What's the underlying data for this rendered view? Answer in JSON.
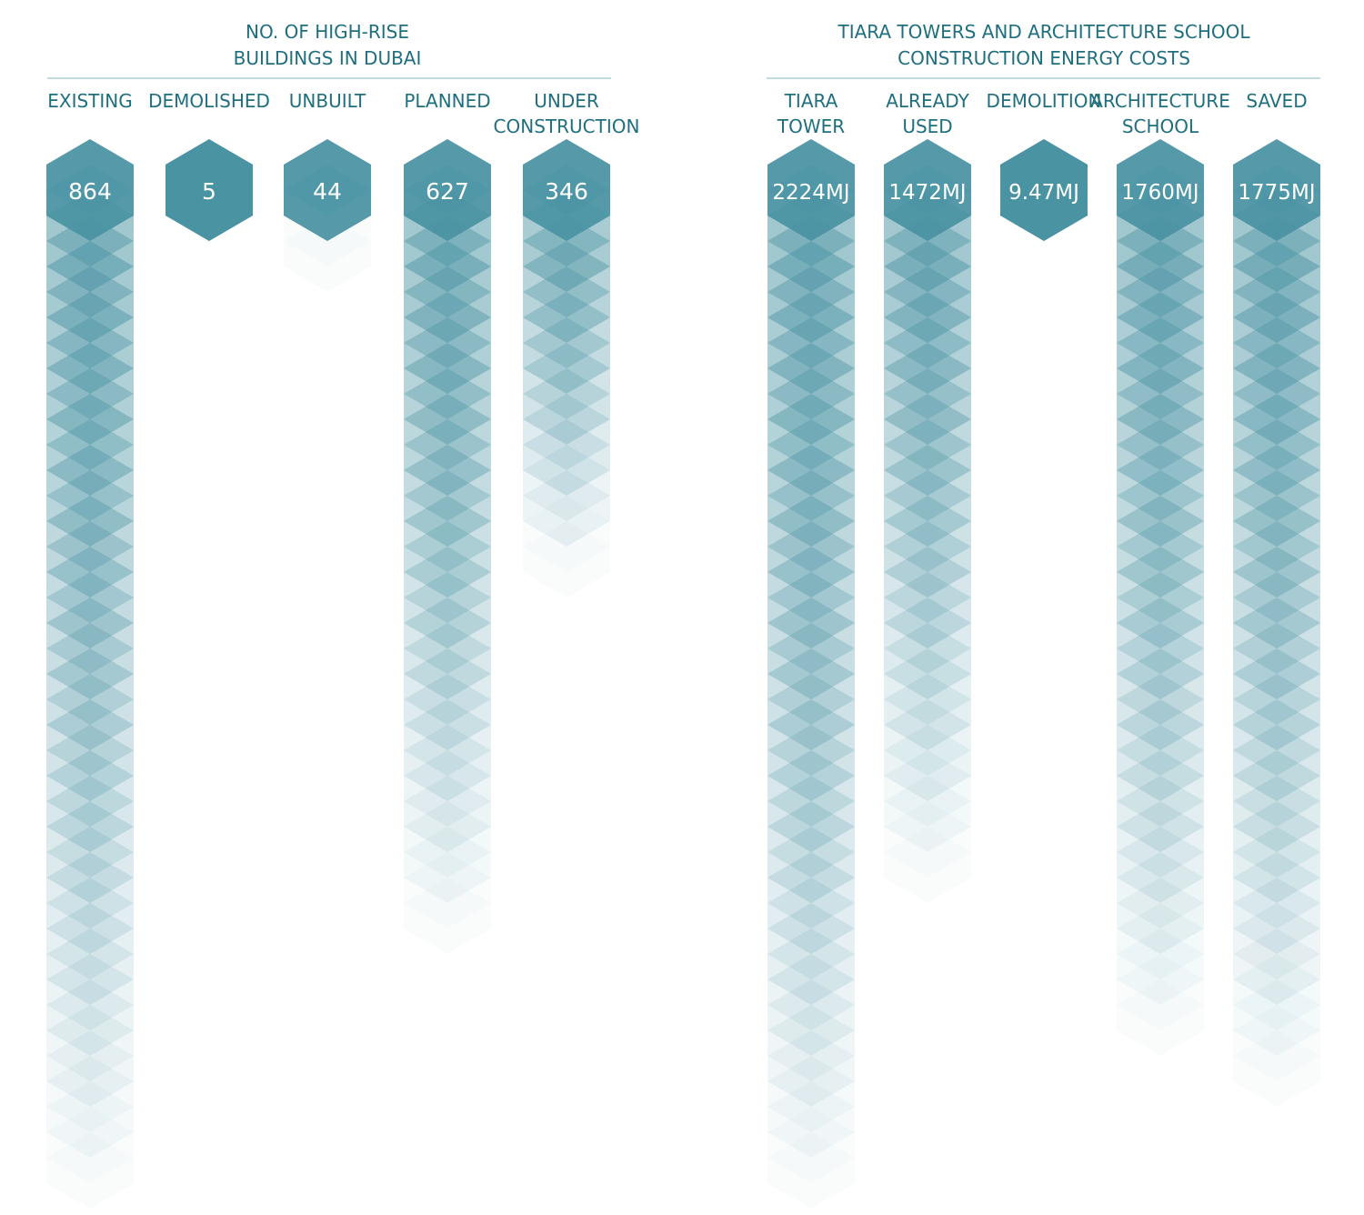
{
  "chart_data": [
    {
      "type": "bar",
      "title": [
        "NO. OF HIGH-RISE",
        "BUILDINGS IN DUBAI"
      ],
      "categories": [
        [
          "EXISTING"
        ],
        [
          "DEMOLISHED"
        ],
        [
          "UNBUILT"
        ],
        [
          "PLANNED"
        ],
        [
          "UNDER",
          "CONSTRUCTION"
        ]
      ],
      "values": [
        864,
        5,
        44,
        627,
        346
      ],
      "value_labels": [
        "864",
        "5",
        "44",
        "627",
        "346"
      ],
      "segments": [
        20,
        1,
        2,
        15,
        8
      ],
      "colors": {
        "base": "#4a93a3",
        "text": "#1f6f7f"
      }
    },
    {
      "type": "bar",
      "title": [
        "TIARA TOWERS AND ARCHITECTURE SCHOOL",
        "CONSTRUCTION ENERGY COSTS"
      ],
      "categories": [
        [
          "TIARA",
          "TOWER"
        ],
        [
          "ALREADY",
          "USED"
        ],
        [
          "DEMOLITION"
        ],
        [
          "ARCHITECTURE",
          "SCHOOL"
        ],
        [
          "SAVED"
        ]
      ],
      "values": [
        2224,
        1472,
        9.47,
        1760,
        1775
      ],
      "value_labels": [
        "2224MJ",
        "1472MJ",
        "9.47MJ",
        "1760MJ",
        "1775MJ"
      ],
      "segments": [
        20,
        14,
        1,
        17,
        18
      ],
      "colors": {
        "base": "#4a93a3",
        "text": "#1f6f7f"
      }
    }
  ]
}
